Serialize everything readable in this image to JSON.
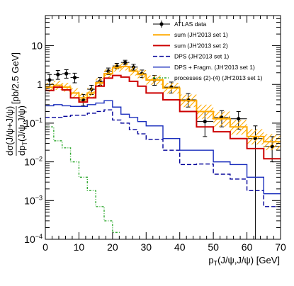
{
  "chart_data": {
    "type": "line",
    "xlabel_main": "p",
    "xlabel_sub": "T",
    "xlabel_rest": "(J/ψ,J/ψ) [GeV]",
    "ylabel_top": "dσ(J/ψ+J/ψ)",
    "ylabel_bottom_main": "dp",
    "ylabel_bottom_sub": "T",
    "ylabel_bottom_rest": "(J/ψ,J/ψ)",
    "ylabel_units": "[pb/2.5 GeV]",
    "xlim": [
      0,
      70
    ],
    "ylim": [
      0.0001,
      60
    ],
    "yscale": "log",
    "grid": false,
    "legend_position": "top-right",
    "x_ticks": [
      0,
      10,
      20,
      30,
      40,
      50,
      60,
      70
    ],
    "y_ticks": [
      {
        "value": 0.0001,
        "base": "10",
        "exp": "−4"
      },
      {
        "value": 0.001,
        "base": "10",
        "exp": "−3"
      },
      {
        "value": 0.01,
        "base": "10",
        "exp": "−2"
      },
      {
        "value": 0.1,
        "base": "10",
        "exp": "−1"
      },
      {
        "value": 1,
        "base": "1",
        "exp": ""
      },
      {
        "value": 10,
        "base": "10",
        "exp": ""
      }
    ],
    "bin_edges": [
      0,
      2.5,
      5,
      7.5,
      10,
      12.5,
      15,
      17.5,
      20,
      22.5,
      25,
      27.5,
      30,
      35,
      40,
      45,
      50,
      55,
      60,
      65,
      70
    ],
    "series": [
      {
        "name": "ATLAS data",
        "kind": "points",
        "color": "#000000",
        "x": [
          1.25,
          3.75,
          6.25,
          8.75,
          11.25,
          13.75,
          16.25,
          18.75,
          21.25,
          23.75,
          26.25,
          28.75,
          32.5,
          37.5,
          42.5,
          47.5,
          52.5,
          57.5,
          62.5,
          67.5
        ],
        "y": [
          1.3,
          1.8,
          1.9,
          1.5,
          0.4,
          0.75,
          1.2,
          2.2,
          3.0,
          3.7,
          2.8,
          1.9,
          1.3,
          0.85,
          0.4,
          0.11,
          0.14,
          0.13,
          0.04,
          0.025
        ],
        "y_low": [
          0.85,
          1.35,
          1.45,
          1.1,
          0.28,
          0.55,
          0.95,
          1.8,
          2.55,
          3.2,
          2.35,
          1.5,
          0.95,
          0.6,
          0.26,
          0.045,
          0.08,
          0.07,
          0.0001,
          0.01
        ],
        "y_high": [
          1.8,
          2.3,
          2.4,
          1.95,
          0.55,
          0.95,
          1.5,
          2.65,
          3.5,
          4.2,
          3.3,
          2.35,
          1.7,
          1.15,
          0.58,
          0.2,
          0.21,
          0.2,
          0.085,
          0.045
        ]
      },
      {
        "name": "sum (JH'2013 set 1)",
        "kind": "band",
        "color": "#ffaa00",
        "values": [
          0.85,
          0.95,
          0.85,
          0.6,
          0.45,
          0.6,
          1.1,
          1.9,
          2.7,
          2.9,
          2.2,
          1.8,
          1.3,
          0.8,
          0.38,
          0.2,
          0.13,
          0.08,
          0.045,
          0.033
        ],
        "low": [
          0.65,
          0.72,
          0.65,
          0.45,
          0.33,
          0.45,
          0.85,
          1.5,
          2.15,
          2.3,
          1.7,
          1.38,
          0.98,
          0.58,
          0.26,
          0.13,
          0.08,
          0.05,
          0.028,
          0.02
        ],
        "high": [
          1.1,
          1.25,
          1.1,
          0.8,
          0.6,
          0.82,
          1.45,
          2.45,
          3.35,
          3.6,
          2.85,
          2.35,
          1.7,
          1.1,
          0.55,
          0.3,
          0.2,
          0.12,
          0.07,
          0.052
        ]
      },
      {
        "name": "sum (JH'2013 set 2)",
        "kind": "step",
        "color": "#cc0000",
        "values": [
          0.7,
          0.85,
          0.72,
          0.45,
          0.35,
          0.45,
          0.9,
          1.45,
          1.7,
          1.55,
          1.2,
          0.9,
          0.6,
          0.4,
          0.2,
          0.08,
          0.06,
          0.04,
          0.022,
          0.012
        ]
      },
      {
        "name": "DPS (JH'2013 set 1)",
        "kind": "step-dashed",
        "color": "#000099",
        "values": [
          0.14,
          0.14,
          0.15,
          0.16,
          0.16,
          0.18,
          0.2,
          0.22,
          0.12,
          0.1,
          0.068,
          0.053,
          0.038,
          0.02,
          0.0085,
          0.0088,
          0.0048,
          0.0036,
          0.0018,
          0.0007
        ]
      },
      {
        "name": "DPS + Fragm. (JH'2013 set 1)",
        "kind": "step",
        "color": "#1a2ebd",
        "values": [
          0.28,
          0.3,
          0.28,
          0.27,
          0.27,
          0.3,
          0.33,
          0.38,
          0.26,
          0.17,
          0.14,
          0.11,
          0.085,
          0.04,
          0.02,
          0.02,
          0.01,
          0.0085,
          0.004,
          0.0015
        ]
      },
      {
        "name": "processes (2)-(4) (JH'2013 set 1)",
        "kind": "step-dashdot",
        "color": "#33aa33",
        "values": [
          0.08,
          0.035,
          0.023,
          0.01,
          0.004,
          0.0018,
          0.0007,
          0.0003,
          0.00015,
          9e-05,
          null,
          null,
          null,
          null,
          null,
          null,
          null,
          null,
          null,
          null
        ]
      }
    ]
  }
}
